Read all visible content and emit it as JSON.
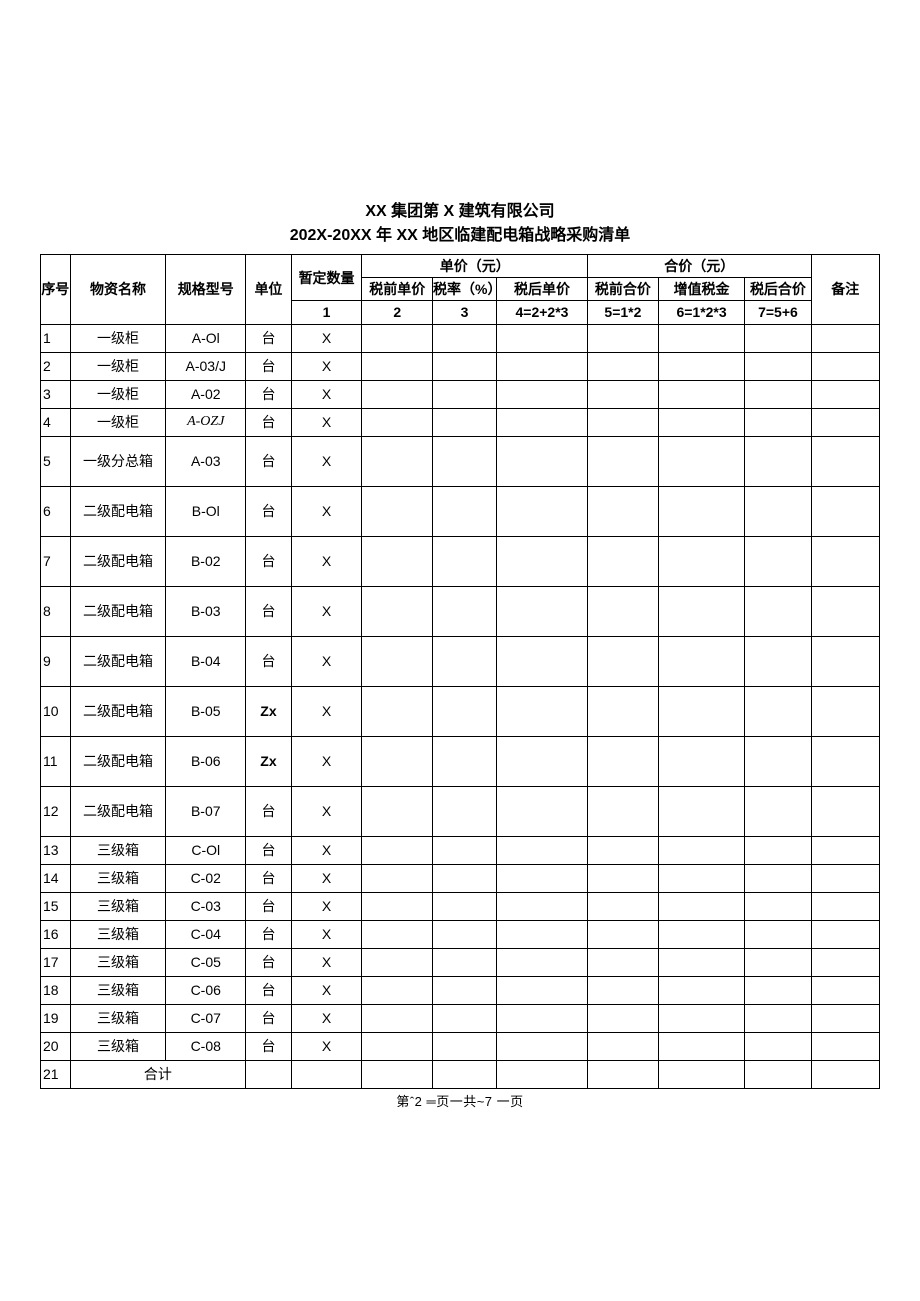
{
  "title": {
    "line1": "XX 集团第 X 建筑有限公司",
    "line2": "202X-20XX 年 XX 地区临建配电箱战略采购清单"
  },
  "header": {
    "seq": "序号",
    "name": "物资名称",
    "spec": "规格型号",
    "unit": "单位",
    "qty": "暂定数量",
    "unit_price_group": "单价（元）",
    "total_price_group": "合价（元）",
    "pre_tax_price": "税前单价",
    "tax_rate": "税率（%）",
    "post_tax_price": "税后单价",
    "pre_tax_total": "税前合价",
    "vat": "增值税金",
    "post_tax_total": "税后合价",
    "remark": "备注"
  },
  "formula": {
    "qty": "1",
    "p1": "2",
    "p2": "3",
    "p3": "4=2+2*3",
    "t1": "5=1*2",
    "t2": "6=1*2*3",
    "t3": "7=5+6"
  },
  "rows": [
    {
      "seq": "1",
      "name": "一级柜",
      "spec": "A-Ol",
      "unit": "台",
      "qty": "X",
      "tall": false,
      "italic": false,
      "unit_bold": false
    },
    {
      "seq": "2",
      "name": "一级柜",
      "spec": "A-03/J",
      "unit": "台",
      "qty": "X",
      "tall": false,
      "italic": false,
      "unit_bold": false
    },
    {
      "seq": "3",
      "name": "一级柜",
      "spec": "A-02",
      "unit": "台",
      "qty": "X",
      "tall": false,
      "italic": false,
      "unit_bold": false
    },
    {
      "seq": "4",
      "name": "一级柜",
      "spec": "A-OZJ",
      "unit": "台",
      "qty": "X",
      "tall": false,
      "italic": true,
      "unit_bold": false
    },
    {
      "seq": "5",
      "name": "一级分总箱",
      "spec": "A-03",
      "unit": "台",
      "qty": "X",
      "tall": true,
      "italic": false,
      "unit_bold": false
    },
    {
      "seq": "6",
      "name": "二级配电箱",
      "spec": "B-Ol",
      "unit": "台",
      "qty": "X",
      "tall": true,
      "italic": false,
      "unit_bold": false
    },
    {
      "seq": "7",
      "name": "二级配电箱",
      "spec": "B-02",
      "unit": "台",
      "qty": "X",
      "tall": true,
      "italic": false,
      "unit_bold": false
    },
    {
      "seq": "8",
      "name": "二级配电箱",
      "spec": "B-03",
      "unit": "台",
      "qty": "X",
      "tall": true,
      "italic": false,
      "unit_bold": false
    },
    {
      "seq": "9",
      "name": "二级配电箱",
      "spec": "B-04",
      "unit": "台",
      "qty": "X",
      "tall": true,
      "italic": false,
      "unit_bold": false
    },
    {
      "seq": "10",
      "name": "二级配电箱",
      "spec": "B-05",
      "unit": "Zx",
      "qty": "X",
      "tall": true,
      "italic": false,
      "unit_bold": true
    },
    {
      "seq": "11",
      "name": "二级配电箱",
      "spec": "B-06",
      "unit": "Zx",
      "qty": "X",
      "tall": true,
      "italic": false,
      "unit_bold": true
    },
    {
      "seq": "12",
      "name": "二级配电箱",
      "spec": "B-07",
      "unit": "台",
      "qty": "X",
      "tall": true,
      "italic": false,
      "unit_bold": false
    },
    {
      "seq": "13",
      "name": "三级箱",
      "spec": "C-Ol",
      "unit": "台",
      "qty": "X",
      "tall": false,
      "italic": false,
      "unit_bold": false
    },
    {
      "seq": "14",
      "name": "三级箱",
      "spec": "C-02",
      "unit": "台",
      "qty": "X",
      "tall": false,
      "italic": false,
      "unit_bold": false
    },
    {
      "seq": "15",
      "name": "三级箱",
      "spec": "C-03",
      "unit": "台",
      "qty": "X",
      "tall": false,
      "italic": false,
      "unit_bold": false
    },
    {
      "seq": "16",
      "name": "三级箱",
      "spec": "C-04",
      "unit": "台",
      "qty": "X",
      "tall": false,
      "italic": false,
      "unit_bold": false
    },
    {
      "seq": "17",
      "name": "三级箱",
      "spec": "C-05",
      "unit": "台",
      "qty": "X",
      "tall": false,
      "italic": false,
      "unit_bold": false
    },
    {
      "seq": "18",
      "name": "三级箱",
      "spec": "C-06",
      "unit": "台",
      "qty": "X",
      "tall": false,
      "italic": false,
      "unit_bold": false
    },
    {
      "seq": "19",
      "name": "三级箱",
      "spec": "C-07",
      "unit": "台",
      "qty": "X",
      "tall": false,
      "italic": false,
      "unit_bold": false
    },
    {
      "seq": "20",
      "name": "三级箱",
      "spec": "C-08",
      "unit": "台",
      "qty": "X",
      "tall": false,
      "italic": false,
      "unit_bold": false
    }
  ],
  "total_row": {
    "seq": "21",
    "label": "合计"
  },
  "footer": "第ˆ2 ═页一共~7 一页"
}
